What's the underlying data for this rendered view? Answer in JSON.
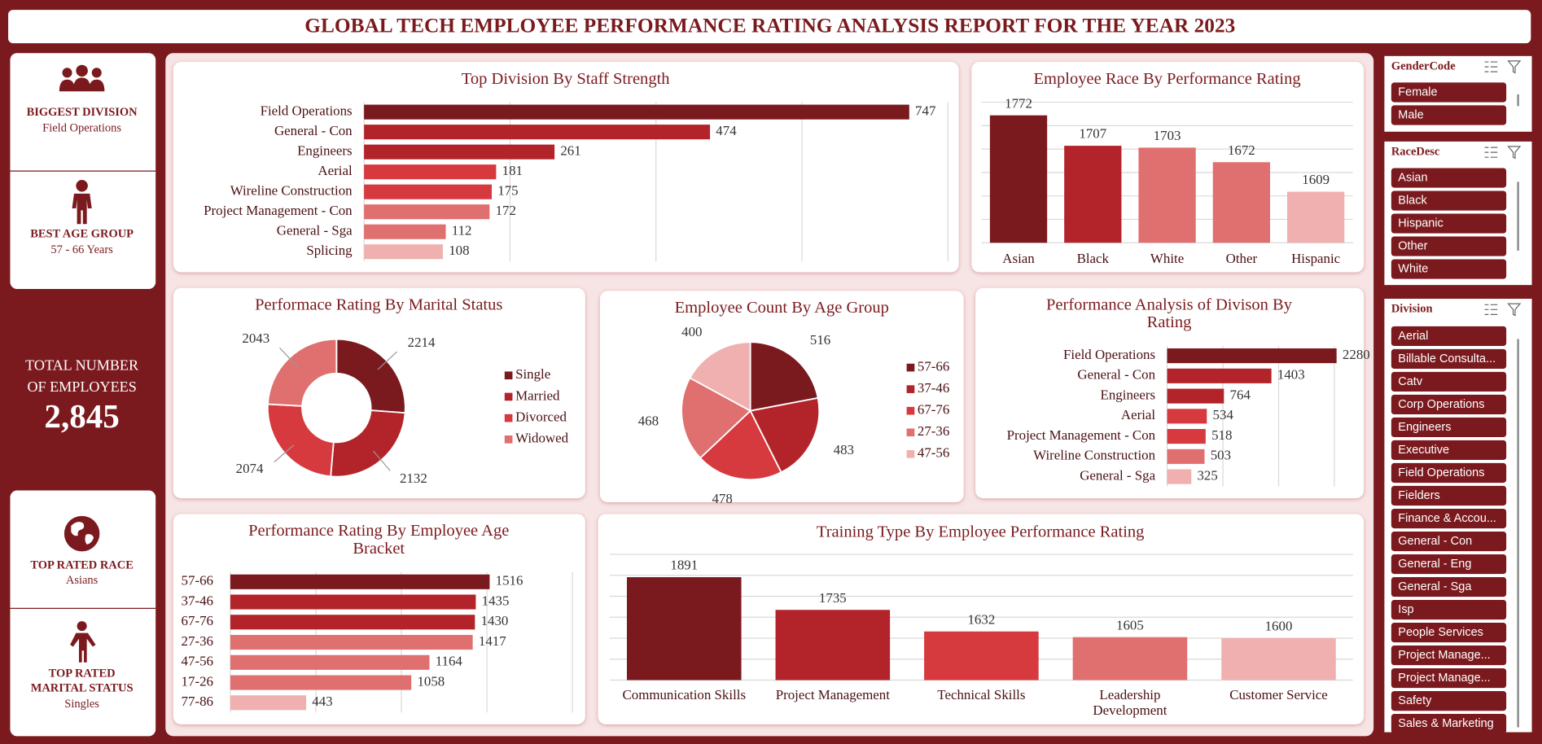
{
  "header": {
    "title": "GLOBAL TECH EMPLOYEE PERFORMANCE RATING ANALYSIS REPORT FOR THE YEAR 2023"
  },
  "kpis": [
    {
      "label": "BIGGEST DIVISION",
      "value": "Field Operations"
    },
    {
      "label": "BEST AGE GROUP",
      "value": "57 - 66  Years"
    },
    {
      "label": "TOTAL NUMBER OF EMPLOYEES",
      "value": "2,845"
    },
    {
      "label": "TOP RATED RACE",
      "value": "Asians"
    },
    {
      "label": "TOP RATED MARITAL STATUS",
      "value": "Singles"
    }
  ],
  "slicers": [
    {
      "title": "GenderCode",
      "items": [
        "Female",
        "Male"
      ]
    },
    {
      "title": "RaceDesc",
      "items": [
        "Asian",
        "Black",
        "Hispanic",
        "Other",
        "White"
      ]
    },
    {
      "title": "Division",
      "items": [
        "Aerial",
        "Billable Consulta...",
        "Catv",
        "Corp Operations",
        "Engineers",
        "Executive",
        "Field Operations",
        "Fielders",
        "Finance & Accou...",
        "General - Con",
        "General - Eng",
        "General - Sga",
        "Isp",
        "People Services",
        "Project Manage...",
        "Project Manage...",
        "Safety",
        "Sales & Marketing"
      ]
    }
  ],
  "chart_data": [
    {
      "type": "barh",
      "title": "Top Division By Staff Strength",
      "categories": [
        "Field Operations",
        "General - Con",
        "Engineers",
        "Aerial",
        "Wireline Construction",
        "Project Management - Con",
        "General - Sga",
        "Splicing"
      ],
      "values": [
        747,
        474,
        261,
        181,
        175,
        172,
        112,
        108
      ],
      "colors": [
        "#7b1a1e",
        "#b3242a",
        "#b3242a",
        "#d63a3f",
        "#d63a3f",
        "#e07070",
        "#e07070",
        "#f0b0b0"
      ],
      "xlim": [
        0,
        800
      ],
      "xticks": [
        0,
        200,
        400,
        600,
        800
      ],
      "grid": true
    },
    {
      "type": "column",
      "title": "Employee Race By Performance Rating",
      "categories": [
        "Asian",
        "Black",
        "White",
        "Other",
        "Hispanic"
      ],
      "values": [
        1772,
        1707,
        1703,
        1672,
        1609
      ],
      "colors": [
        "#7b1a1e",
        "#b3242a",
        "#e07070",
        "#e07070",
        "#f0b0b0"
      ],
      "ylim": [
        1500,
        1800
      ],
      "yticks": [
        1500,
        1550,
        1600,
        1650,
        1700,
        1750,
        1800
      ],
      "grid": true
    },
    {
      "type": "donut",
      "title": "Performace Rating By Marital Status",
      "categories": [
        "Single",
        "Married",
        "Divorced",
        "Widowed"
      ],
      "values": [
        2214,
        2132,
        2074,
        2043
      ],
      "colors": [
        "#7b1a1e",
        "#b3242a",
        "#d63a3f",
        "#e07070"
      ]
    },
    {
      "type": "pie",
      "title": "Employee Count By Age Group",
      "categories": [
        "57-66",
        "37-46",
        "67-76",
        "27-36",
        "47-56"
      ],
      "values": [
        516,
        483,
        478,
        468,
        400
      ],
      "colors": [
        "#7b1a1e",
        "#b3242a",
        "#d63a3f",
        "#e07070",
        "#f0b0b0"
      ]
    },
    {
      "type": "barh",
      "title": "Performance Analysis of Divison By Rating",
      "categories": [
        "Field Operations",
        "General - Con",
        "Engineers",
        "Aerial",
        "Project Management - Con",
        "Wireline Construction",
        "General - Sga"
      ],
      "values": [
        2280,
        1403,
        764,
        534,
        518,
        503,
        325
      ],
      "colors": [
        "#7b1a1e",
        "#b3242a",
        "#b3242a",
        "#d63a3f",
        "#d63a3f",
        "#e07070",
        "#f0b0b0"
      ],
      "xlim": [
        0,
        2500
      ],
      "xticks": [
        0,
        750,
        1500,
        2250
      ],
      "grid": true
    },
    {
      "type": "barh",
      "title": "Performance Rating By Employee Age Bracket",
      "categories": [
        "57-66",
        "37-46",
        "67-76",
        "27-36",
        "47-56",
        "17-26",
        "77-86"
      ],
      "values": [
        1516,
        1435,
        1430,
        1417,
        1164,
        1058,
        443
      ],
      "colors": [
        "#7b1a1e",
        "#b3242a",
        "#b3242a",
        "#e07070",
        "#e07070",
        "#e07070",
        "#f0b0b0"
      ],
      "xlim": [
        0,
        2000
      ],
      "xticks": [
        0,
        500,
        1000,
        1500,
        2000
      ],
      "grid": true
    },
    {
      "type": "column",
      "title": "Training Type By Employee Performance Rating",
      "categories": [
        "Communication Skills",
        "Project Management",
        "Technical Skills",
        "Leadership Development",
        "Customer Service"
      ],
      "values": [
        1891,
        1735,
        1632,
        1605,
        1600
      ],
      "colors": [
        "#7b1a1e",
        "#b3242a",
        "#d63a3f",
        "#e07070",
        "#f0b0b0"
      ],
      "ylim": [
        1400,
        2000
      ],
      "yticks": [
        1400,
        1500,
        1600,
        1700,
        1800,
        1900,
        2000
      ],
      "grid": true
    }
  ]
}
